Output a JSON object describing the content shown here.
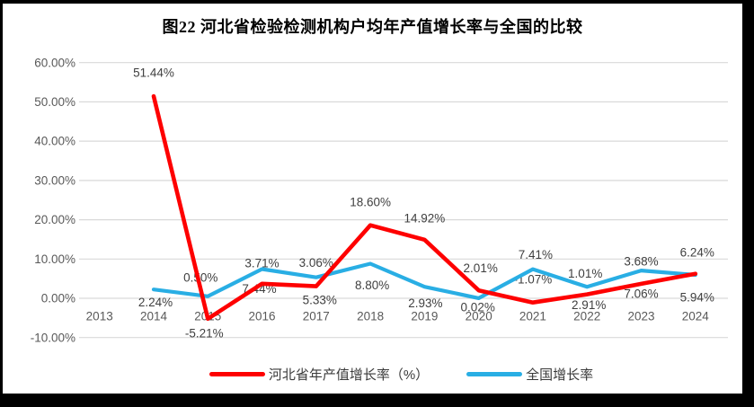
{
  "figure": {
    "title": "图22  河北省检验检测机构户均年产值增长率与全国的比较",
    "background_color": "#000000",
    "paper_color": "#FFFFFF"
  },
  "chart_data": {
    "type": "line",
    "title": "图22  河北省检验检测机构户均年产值增长率与全国的比较",
    "categories": [
      "2013",
      "2014",
      "2015",
      "2016",
      "2017",
      "2018",
      "2019",
      "2020",
      "2021",
      "2022",
      "2023",
      "2024"
    ],
    "series": [
      {
        "name": "河北省年产值增长率（%）",
        "color": "#FE0000",
        "values": [
          null,
          51.44,
          -5.21,
          3.71,
          3.06,
          18.6,
          14.92,
          2.01,
          -1.07,
          1.01,
          3.68,
          6.24
        ]
      },
      {
        "name": "全国增长率",
        "color": "#29AEE4",
        "values": [
          null,
          2.24,
          0.5,
          7.44,
          5.33,
          8.8,
          2.93,
          0.02,
          7.41,
          2.91,
          7.06,
          5.94
        ]
      }
    ],
    "y_ticks": [
      "60.00%",
      "50.00%",
      "40.00%",
      "30.00%",
      "20.00%",
      "10.00%",
      "0.00%",
      "-10.00%"
    ],
    "y_tick_values": [
      60,
      50,
      40,
      30,
      20,
      10,
      0,
      -10
    ],
    "ylim": [
      -10,
      60
    ],
    "grid": "horizontal",
    "gridline_color": "#D9D9D9",
    "axis_text_color": "#595959",
    "data_label_color": "#3F3F3F",
    "legend_position": "bottom",
    "label_format": "0.00%"
  },
  "layout_hints": {
    "label_dy": [
      [
        0,
        -26,
        16,
        -23,
        -26,
        -26,
        -24,
        -25,
        -26,
        -23,
        -25,
        -24
      ],
      [
        0,
        14,
        -21,
        22,
        25,
        24,
        18,
        10,
        -16,
        20,
        26,
        25
      ]
    ],
    "label_dx": [
      [
        0,
        0,
        -4,
        0,
        0,
        0,
        0,
        2,
        0,
        -2,
        0,
        2
      ],
      [
        0,
        2,
        -8,
        -3,
        4,
        2,
        1,
        -1,
        3,
        2,
        0,
        2
      ]
    ]
  }
}
